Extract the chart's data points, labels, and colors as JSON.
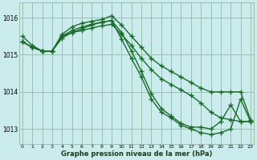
{
  "xlabel": "Graphe pression niveau de la mer (hPa)",
  "ylim": [
    1012.6,
    1016.4
  ],
  "xlim": [
    -0.3,
    23.3
  ],
  "yticks": [
    1013,
    1014,
    1015,
    1016
  ],
  "xticks": [
    0,
    1,
    2,
    3,
    4,
    5,
    6,
    7,
    8,
    9,
    10,
    11,
    12,
    13,
    14,
    15,
    16,
    17,
    18,
    19,
    20,
    21,
    22,
    23
  ],
  "bg_color": "#cbeced",
  "grid_color": "#9dbfb0",
  "line_color": "#1a6b2a",
  "marker": "+",
  "markersize": 4,
  "linewidth": 1.0,
  "lines": [
    [
      1015.35,
      1015.2,
      1015.1,
      1015.1,
      1015.55,
      1015.75,
      1015.85,
      1015.9,
      1015.95,
      1016.05,
      1015.8,
      1015.5,
      1015.2,
      1014.9,
      1014.7,
      1014.55,
      1014.4,
      1014.25,
      1014.1,
      1014.0,
      1014.0,
      1014.0,
      1014.0,
      1013.25
    ],
    [
      1015.35,
      1015.2,
      1015.1,
      1015.1,
      1015.5,
      1015.65,
      1015.75,
      1015.82,
      1015.88,
      1015.92,
      1015.6,
      1015.1,
      1014.55,
      1013.95,
      1013.55,
      1013.35,
      1013.15,
      1013.05,
      1013.05,
      1013.0,
      1013.2,
      1013.65,
      1013.2,
      1013.2
    ],
    [
      1015.35,
      1015.2,
      1015.1,
      1015.1,
      1015.45,
      1015.6,
      1015.7,
      1015.8,
      1015.88,
      1015.92,
      1015.42,
      1014.9,
      1014.4,
      1013.8,
      1013.45,
      1013.3,
      1013.1,
      1013.0,
      1012.9,
      1012.85,
      1012.9,
      1013.0,
      1013.8,
      1013.2
    ],
    [
      1015.5,
      1015.25,
      1015.1,
      1015.1,
      1015.5,
      1015.6,
      1015.65,
      1015.72,
      1015.78,
      1015.82,
      1015.55,
      1015.25,
      1014.9,
      1014.6,
      1014.35,
      1014.2,
      1014.05,
      1013.9,
      1013.7,
      1013.45,
      1013.3,
      1013.25,
      1013.2,
      1013.2
    ]
  ]
}
